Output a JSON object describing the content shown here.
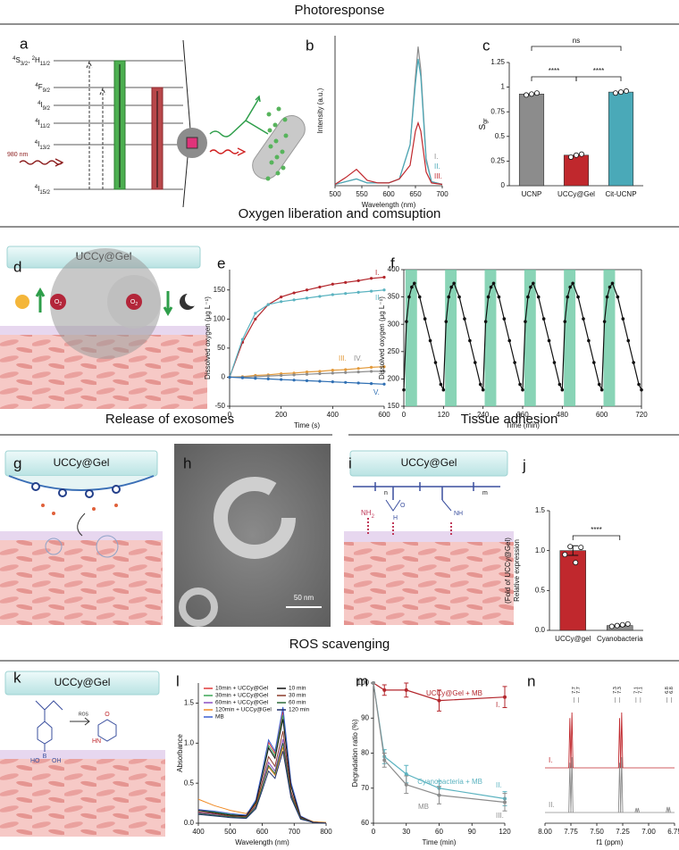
{
  "sections": [
    "Photoresponse",
    "Oxygen liberation and comsuption",
    "Release of exosomes",
    "Tissue adhesion",
    "ROS scavenging"
  ],
  "panel_letters": [
    "a",
    "b",
    "c",
    "d",
    "e",
    "f",
    "g",
    "h",
    "i",
    "j",
    "k",
    "l",
    "m",
    "n"
  ],
  "diagrams": {
    "a": {
      "levels": [
        {
          "terms": [
            {
              "sup": "4",
              "main": "S",
              "sub": "3/2"
            },
            {
              "sup": "2",
              "main": "H",
              "sub": "11/2"
            }
          ]
        },
        {
          "terms": [
            {
              "sup": "4",
              "main": "F",
              "sub": "9/2"
            }
          ]
        },
        {
          "terms": [
            {
              "sup": "4",
              "main": "I",
              "sub": "9/2"
            }
          ]
        },
        {
          "terms": [
            {
              "sup": "4",
              "main": "I",
              "sub": "11/2"
            }
          ]
        },
        {
          "terms": [
            {
              "sup": "4",
              "main": "I",
              "sub": "13/2"
            }
          ]
        },
        {
          "terms": [
            {
              "sup": "4",
              "main": "I",
              "sub": "15/2"
            }
          ]
        }
      ],
      "separator": ", ",
      "excitation": "980 nm"
    },
    "d": {
      "gel": "UCCy@Gel",
      "o2": {
        "main": "O",
        "sub": "2"
      }
    },
    "g": {
      "gel": "UCCy@Gel"
    },
    "h": {
      "scale_bar": "50 nm"
    },
    "i": {
      "gel": "UCCy@Gel",
      "amine": {
        "main": "NH",
        "sub": "2"
      },
      "chain_n": "n",
      "chain_m": "m",
      "oxygen": "O",
      "hydrogen": "H",
      "amide": "NH"
    },
    "k": {
      "gel": "UCCy@Gel",
      "ros": "ROS",
      "boron": "B",
      "hydroxyl": "OH",
      "hydroxyl2": "HO",
      "amine": "HN",
      "oxygen": "O"
    }
  },
  "chart_data": [
    {
      "type": "line",
      "xlabel": "Wavelength (nm)",
      "ylabel": "Intensity (a.u.)",
      "x": [
        500,
        520,
        540,
        560,
        580,
        600,
        620,
        640,
        650,
        655,
        660,
        670,
        680,
        700
      ],
      "xlim": [
        500,
        700
      ],
      "xticks": [
        500,
        550,
        600,
        650,
        700
      ],
      "ylim": [
        0,
        1.1
      ],
      "series": [
        {
          "name": "I.",
          "color": "#8c8c8c",
          "values": [
            0.01,
            0.03,
            0.05,
            0.02,
            0.02,
            0.02,
            0.05,
            0.3,
            0.8,
            1.02,
            0.85,
            0.2,
            0.03,
            0.01
          ]
        },
        {
          "name": "II.",
          "color": "#4aa9b8",
          "values": [
            0.01,
            0.03,
            0.05,
            0.02,
            0.02,
            0.02,
            0.05,
            0.3,
            0.75,
            0.93,
            0.8,
            0.18,
            0.03,
            0.01
          ]
        },
        {
          "name": "III.",
          "color": "#c0282d",
          "values": [
            0.01,
            0.06,
            0.12,
            0.04,
            0.02,
            0.02,
            0.05,
            0.15,
            0.4,
            0.46,
            0.4,
            0.1,
            0.02,
            0.01
          ]
        }
      ]
    },
    {
      "type": "bar",
      "ylabel": "S",
      "ylabel_sub": "gr",
      "categories": [
        "UCNP",
        "UCCy@Gel",
        "Cit-UCNP"
      ],
      "values": [
        0.93,
        0.31,
        0.95
      ],
      "colors": [
        "#8c8c8c",
        "#c0282d",
        "#4aa9b8"
      ],
      "points": [
        [
          0.92,
          0.93,
          0.94
        ],
        [
          0.29,
          0.31,
          0.32
        ],
        [
          0.94,
          0.95,
          0.96
        ]
      ],
      "ylim": [
        0,
        1.25
      ],
      "yticks": [
        0,
        0.25,
        0.5,
        0.75,
        1,
        1.25
      ],
      "significance": [
        "ns",
        "****",
        "****"
      ]
    },
    {
      "type": "line",
      "xlabel": "Time (s)",
      "ylabel": "Dissolved oxygen (μg L⁻¹)",
      "x": [
        0,
        50,
        100,
        150,
        200,
        250,
        300,
        350,
        400,
        450,
        500,
        550,
        600
      ],
      "xlim": [
        0,
        600
      ],
      "xticks": [
        0,
        200,
        400,
        600
      ],
      "ylim": [
        -50,
        185
      ],
      "yticks": [
        -50,
        0,
        50,
        100,
        150
      ],
      "series": [
        {
          "name": "I.",
          "color": "#b3262c",
          "values": [
            0,
            60,
            100,
            125,
            138,
            145,
            150,
            155,
            160,
            163,
            166,
            170,
            172
          ]
        },
        {
          "name": "II.",
          "color": "#5bb3c0",
          "values": [
            0,
            65,
            110,
            125,
            130,
            133,
            136,
            139,
            142,
            144,
            146,
            148,
            150
          ]
        },
        {
          "name": "III.",
          "color": "#e39a3b",
          "values": [
            0,
            1,
            3,
            4,
            6,
            7,
            9,
            10,
            12,
            13,
            15,
            17,
            18
          ]
        },
        {
          "name": "IV.",
          "color": "#8c8c8c",
          "values": [
            0,
            0,
            1,
            2,
            3,
            4,
            5,
            6,
            7,
            8,
            9,
            10,
            10
          ]
        },
        {
          "name": "V.",
          "color": "#2f6fb3",
          "values": [
            0,
            -1,
            -2,
            -3,
            -4,
            -5,
            -6,
            -7,
            -8,
            -9,
            -10,
            -11,
            -12
          ]
        }
      ]
    },
    {
      "type": "line",
      "xlabel": "Time (min)",
      "ylabel": "Dissolved oxygen (μg L⁻¹)",
      "x": [
        0,
        8,
        16,
        24,
        32,
        48,
        64,
        80,
        96,
        112,
        120,
        128,
        136,
        144,
        152,
        168,
        184,
        200,
        216,
        232,
        240,
        248,
        256,
        264,
        272,
        288,
        304,
        320,
        336,
        352,
        360,
        368,
        376,
        384,
        392,
        408,
        424,
        440,
        456,
        472,
        480,
        488,
        496,
        504,
        512,
        528,
        544,
        560,
        576,
        592,
        600,
        608,
        616,
        624,
        632,
        648,
        664,
        680,
        696,
        712,
        720
      ],
      "xlim": [
        0,
        720
      ],
      "xticks": [
        0,
        120,
        240,
        360,
        480,
        600,
        720
      ],
      "ylim": [
        150,
        400
      ],
      "yticks": [
        150,
        200,
        250,
        300,
        350,
        400
      ],
      "shaded": [
        [
          5,
          40
        ],
        [
          125,
          160
        ],
        [
          245,
          280
        ],
        [
          365,
          400
        ],
        [
          485,
          520
        ],
        [
          605,
          640
        ]
      ],
      "shade_color": "#6cc9a4",
      "series": [
        {
          "color": "#111111",
          "values": [
            180,
            305,
            350,
            368,
            375,
            350,
            310,
            270,
            230,
            190,
            180,
            305,
            350,
            368,
            375,
            350,
            310,
            270,
            230,
            190,
            180,
            305,
            350,
            368,
            375,
            350,
            310,
            270,
            230,
            190,
            180,
            305,
            350,
            368,
            375,
            350,
            310,
            270,
            230,
            190,
            180,
            305,
            350,
            368,
            375,
            350,
            310,
            270,
            230,
            190,
            180,
            305,
            350,
            368,
            375,
            350,
            310,
            270,
            230,
            190,
            180
          ]
        }
      ]
    },
    {
      "type": "bar",
      "ylabel": [
        "Relative expression",
        "(Fold of UCCy@Gel)"
      ],
      "categories": [
        "UCCy@gel",
        "Cyanobacteria"
      ],
      "values": [
        1.0,
        0.06
      ],
      "errors": [
        0.06,
        0.01
      ],
      "colors": [
        "#c0282d",
        "#8c8c8c"
      ],
      "points": [
        [
          0.95,
          1.05,
          0.85,
          1.04
        ],
        [
          0.05,
          0.06,
          0.07,
          0.08
        ]
      ],
      "ylim": [
        0,
        1.5
      ],
      "yticks": [
        {
          "value": 0,
          "label": "0.0"
        },
        0.5,
        {
          "value": 1,
          "label": "1.0"
        },
        1.5
      ],
      "significance": [
        "****"
      ]
    },
    {
      "type": "line",
      "xlabel": "Wavelength (nm)",
      "ylabel": "Absorbance",
      "x": [
        400,
        450,
        500,
        550,
        580,
        600,
        620,
        640,
        665,
        690,
        720,
        760,
        800
      ],
      "xlim": [
        400,
        800
      ],
      "xticks": [
        400,
        500,
        600,
        700,
        800
      ],
      "ylim": [
        0,
        1.75
      ],
      "yticks": [
        {
          "value": 0,
          "label": "0.0"
        },
        0.5,
        {
          "value": 1,
          "label": "1.0"
        },
        1.5
      ],
      "legend": true,
      "series": [
        {
          "name": "10min + UCCy@Gel",
          "color": "#e03a3a",
          "values": [
            0.17,
            0.14,
            0.11,
            0.1,
            0.28,
            0.63,
            1.01,
            0.87,
            1.4,
            0.49,
            0.08,
            0.01,
            0
          ]
        },
        {
          "name": "30min + UCCy@Gel",
          "color": "#3aa655",
          "values": [
            0.16,
            0.14,
            0.11,
            0.09,
            0.27,
            0.61,
            0.97,
            0.84,
            1.35,
            0.47,
            0.08,
            0.01,
            0
          ]
        },
        {
          "name": "60min + UCCy@Gel",
          "color": "#8b4fc2",
          "values": [
            0.13,
            0.11,
            0.08,
            0.07,
            0.21,
            0.47,
            0.76,
            0.65,
            1.05,
            0.37,
            0.06,
            0.01,
            0
          ]
        },
        {
          "name": "120min + UCCy@Gel",
          "color": "#f08a24",
          "values": [
            0.3,
            0.22,
            0.16,
            0.12,
            0.24,
            0.46,
            0.7,
            0.6,
            0.95,
            0.35,
            0.08,
            0.02,
            0.01
          ]
        },
        {
          "name": "MB",
          "color": "#3b5fd0",
          "values": [
            0.17,
            0.15,
            0.12,
            0.1,
            0.29,
            0.65,
            1.04,
            0.9,
            1.45,
            0.51,
            0.09,
            0.01,
            0
          ]
        },
        {
          "name": "10 min",
          "color": "#111111",
          "values": [
            0.16,
            0.13,
            0.1,
            0.09,
            0.26,
            0.59,
            0.94,
            0.81,
            1.3,
            0.46,
            0.08,
            0.01,
            0
          ]
        },
        {
          "name": "30 min",
          "color": "#8a3a2a",
          "values": [
            0.14,
            0.12,
            0.09,
            0.08,
            0.23,
            0.52,
            0.83,
            0.71,
            1.15,
            0.4,
            0.07,
            0.01,
            0
          ]
        },
        {
          "name": "60 min",
          "color": "#2e6b3a",
          "values": [
            0.12,
            0.1,
            0.08,
            0.07,
            0.2,
            0.45,
            0.72,
            0.62,
            1.0,
            0.35,
            0.06,
            0.01,
            0
          ]
        },
        {
          "name": "120 min",
          "color": "#1f2f6b",
          "values": [
            0.11,
            0.09,
            0.07,
            0.06,
            0.18,
            0.41,
            0.65,
            0.56,
            0.9,
            0.32,
            0.05,
            0.01,
            0
          ]
        }
      ]
    },
    {
      "type": "line",
      "xlabel": "Time (min)",
      "ylabel": "Degradation ratio (%)",
      "x": [
        0,
        10,
        30,
        60,
        120
      ],
      "xlim": [
        0,
        120
      ],
      "xticks": [
        0,
        30,
        60,
        90,
        120
      ],
      "ylim": [
        60,
        100
      ],
      "yticks": [
        60,
        70,
        80,
        90,
        100
      ],
      "series": [
        {
          "name": "UCCy@Gel + MB",
          "tag": "I.",
          "color": "#b3262c",
          "values": [
            100,
            98,
            98,
            95,
            96
          ],
          "errors": [
            0,
            1.5,
            2,
            3,
            3
          ]
        },
        {
          "name": "Cyanobacteria + MB",
          "tag": "II.",
          "color": "#5bb3c0",
          "values": [
            100,
            79,
            74,
            70,
            67
          ],
          "errors": [
            0,
            2,
            2.5,
            2,
            2
          ]
        },
        {
          "name": "MB",
          "tag": "III.",
          "color": "#8c8c8c",
          "values": [
            100,
            78,
            71,
            68,
            66
          ],
          "errors": [
            0,
            2,
            2.5,
            2.5,
            2.5
          ]
        }
      ]
    },
    {
      "type": "nmr",
      "xlabel": "f1 (ppm)",
      "xlim": [
        8.0,
        6.75
      ],
      "xticks": [
        {
          "value": 8,
          "label": "8.00"
        },
        7.75,
        {
          "value": 7.5,
          "label": "7.50"
        },
        7.25,
        {
          "value": 7,
          "label": "7.00"
        },
        6.75
      ],
      "peak_labels": [
        7.7,
        7.7,
        7.3,
        7.3,
        7.1,
        7.1,
        6.8,
        6.8
      ],
      "series": [
        {
          "name": "I.",
          "color": "#c0282d",
          "peaks": [
            7.76,
            7.74,
            7.28,
            7.26
          ],
          "heights": [
            0.9,
            1.0,
            0.9,
            1.0
          ]
        },
        {
          "name": "II.",
          "color": "#8c8c8c",
          "peaks": [
            7.76,
            7.74,
            7.28,
            7.26,
            7.12,
            7.1,
            6.82,
            6.8
          ],
          "heights": [
            0.9,
            1.0,
            0.9,
            1.0,
            0.08,
            0.08,
            0.1,
            0.1
          ]
        }
      ]
    }
  ]
}
